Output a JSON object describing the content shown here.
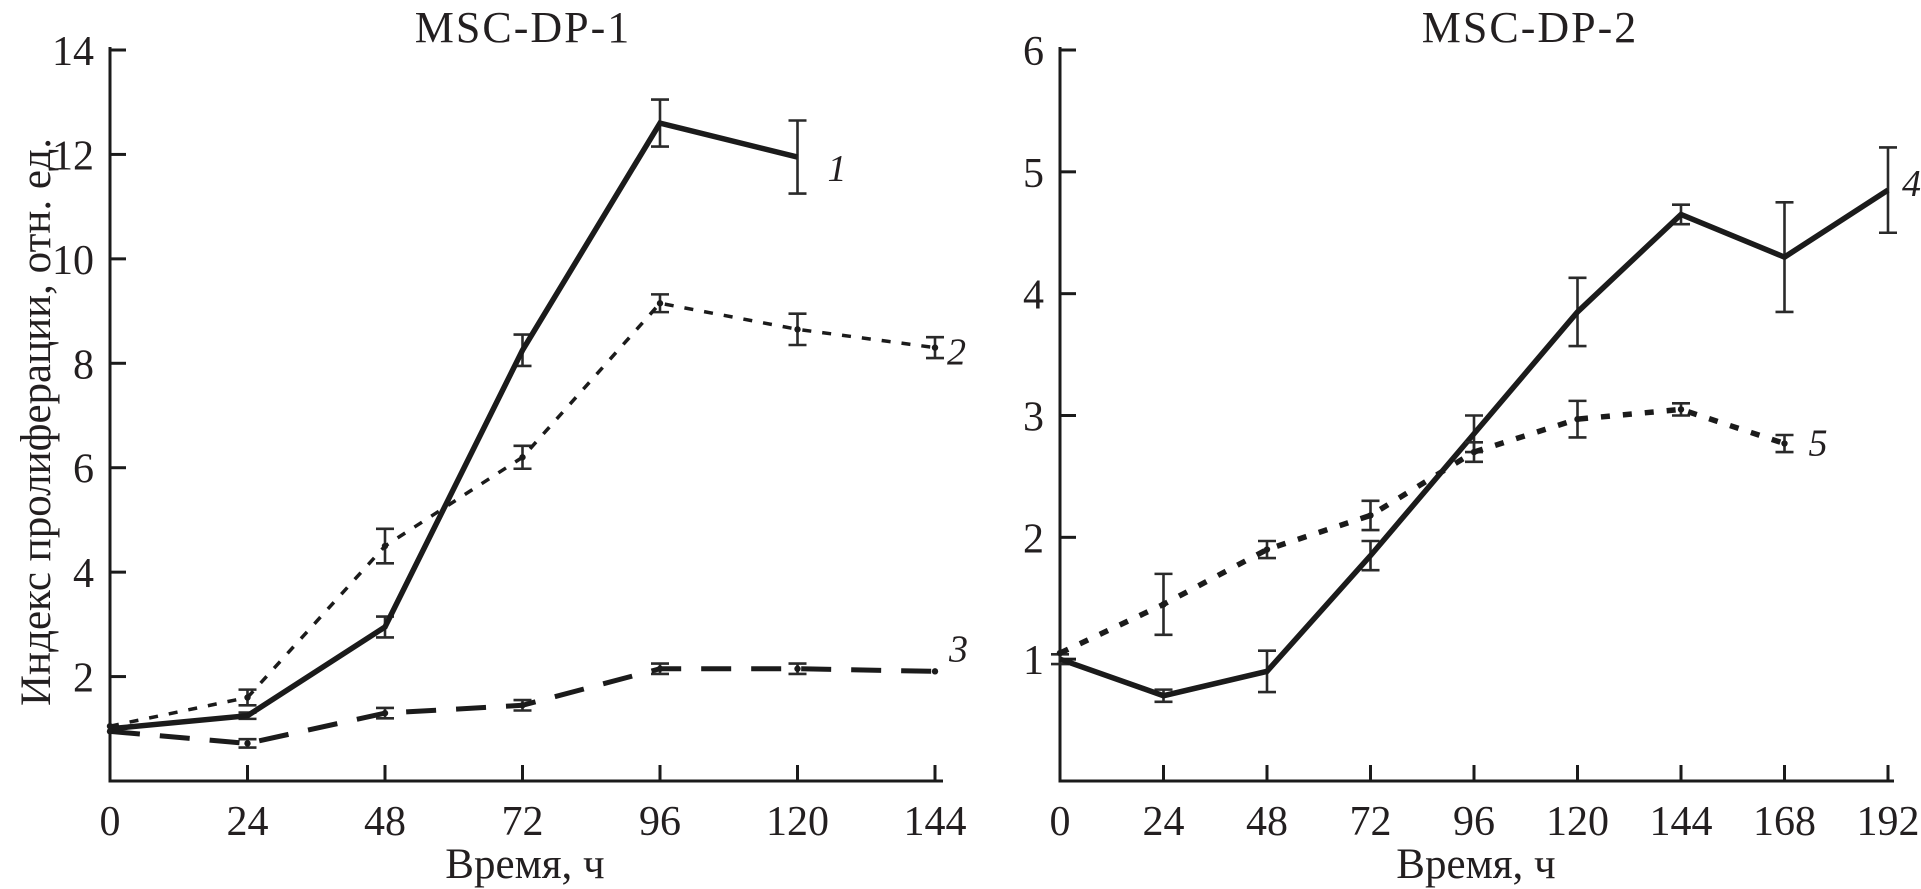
{
  "figure": {
    "background": "#ffffff",
    "ink": "#1b1b1b",
    "errorbar_color": "#2a2a2a"
  },
  "chart_data": [
    {
      "type": "line",
      "title": "MSC-DP-1",
      "xlabel": "Время, ч",
      "ylabel": "Индекс пролиферации, отн. ед.",
      "xlim": [
        0,
        144
      ],
      "ylim": [
        0,
        14
      ],
      "x_ticks": [
        0,
        24,
        48,
        72,
        96,
        120,
        144
      ],
      "y_ticks": [
        2,
        4,
        6,
        8,
        10,
        12,
        14
      ],
      "grid": false,
      "legend": "inline-end-labels",
      "series": [
        {
          "name": "1",
          "style": "solid",
          "x": [
            0,
            24,
            48,
            72,
            96,
            120
          ],
          "y": [
            1.0,
            1.25,
            2.95,
            8.25,
            12.6,
            11.95
          ],
          "err": [
            0,
            0.06,
            0.2,
            0.3,
            0.45,
            0.7
          ],
          "label": "1",
          "label_offset": [
            30,
            24
          ]
        },
        {
          "name": "2",
          "style": "dash-small",
          "x": [
            0,
            24,
            48,
            72,
            96,
            120,
            144
          ],
          "y": [
            1.05,
            1.6,
            4.5,
            6.2,
            9.15,
            8.65,
            8.3
          ],
          "err": [
            0,
            0.15,
            0.33,
            0.22,
            0.17,
            0.3,
            0.2
          ],
          "label": "2",
          "label_offset": [
            12,
            17
          ]
        },
        {
          "name": "3",
          "style": "dash-long",
          "x": [
            0,
            24,
            48,
            72,
            96,
            120,
            144
          ],
          "y": [
            0.95,
            0.72,
            1.3,
            1.45,
            2.15,
            2.15,
            2.1
          ],
          "err": [
            0,
            0.08,
            0.1,
            0.1,
            0.1,
            0.1,
            0
          ],
          "label": "3",
          "label_offset": [
            14,
            -10
          ]
        }
      ]
    },
    {
      "type": "line",
      "title": "MSC-DP-2",
      "xlabel": "Время, ч",
      "ylabel": "",
      "xlim": [
        0,
        192
      ],
      "ylim": [
        0,
        6
      ],
      "x_ticks": [
        0,
        24,
        48,
        72,
        96,
        120,
        144,
        168,
        192
      ],
      "y_ticks": [
        1,
        2,
        3,
        4,
        5,
        6
      ],
      "grid": false,
      "legend": "inline-end-labels",
      "series": [
        {
          "name": "4",
          "style": "solid",
          "x": [
            0,
            24,
            48,
            72,
            96,
            120,
            144,
            168,
            192
          ],
          "y": [
            1.0,
            0.7,
            0.9,
            1.85,
            2.85,
            3.85,
            4.65,
            4.3,
            4.85
          ],
          "err": [
            0.04,
            0.05,
            0.17,
            0.12,
            0.15,
            0.28,
            0.08,
            0.45,
            0.35
          ],
          "label": "4",
          "label_offset": [
            14,
            6
          ]
        },
        {
          "name": "5",
          "style": "dash-bold",
          "x": [
            0,
            24,
            48,
            72,
            96,
            120,
            144,
            168
          ],
          "y": [
            1.05,
            1.45,
            1.9,
            2.18,
            2.7,
            2.97,
            3.05,
            2.77
          ],
          "err": [
            0,
            0.25,
            0.07,
            0.12,
            0.08,
            0.15,
            0.05,
            0.07
          ],
          "label": "5",
          "label_offset": [
            24,
            12
          ]
        }
      ]
    }
  ]
}
